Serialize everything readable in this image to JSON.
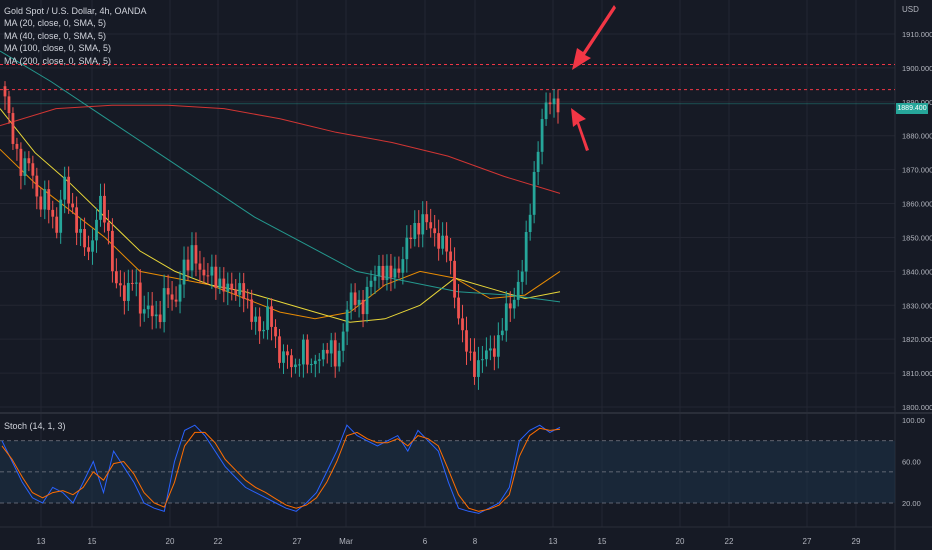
{
  "chart_data": [
    {
      "type": "candlestick",
      "title": "Gold Spot / U.S. Dollar, 4h, OANDA",
      "currency": "USD",
      "indicators": [
        "MA (20, close, 0, SMA, 5)",
        "MA (40, close, 0, SMA, 5)",
        "MA (100, close, 0, SMA, 5)",
        "MA (200, close, 0, SMA, 5)"
      ],
      "y_ticks": [
        "1910.000",
        "1900.000",
        "1890.000",
        "1880.000",
        "1870.000",
        "1860.000",
        "1850.000",
        "1840.000",
        "1830.000",
        "1820.000",
        "1810.000",
        "1800.000"
      ],
      "ylim": [
        1797,
        1916
      ],
      "x_ticks": [
        "13",
        "15",
        "20",
        "22",
        "27",
        "Mar",
        "6",
        "8",
        "13",
        "15",
        "20",
        "22",
        "27",
        "29"
      ],
      "last_price": "1889.400",
      "horizontal_levels": [
        1901.0,
        1893.6
      ],
      "close_path": [
        1890,
        1880,
        1868,
        1874,
        1858,
        1862,
        1852,
        1866,
        1858,
        1848,
        1846,
        1860,
        1854,
        1836,
        1832,
        1840,
        1826,
        1832,
        1822,
        1838,
        1828,
        1842,
        1846,
        1838,
        1842,
        1834,
        1838,
        1832,
        1836,
        1826,
        1822,
        1830,
        1814,
        1818,
        1808,
        1820,
        1810,
        1816,
        1818,
        1812,
        1828,
        1832,
        1830,
        1836,
        1842,
        1838,
        1840,
        1846,
        1852,
        1856,
        1852,
        1850,
        1846,
        1832,
        1818,
        1812,
        1814,
        1816,
        1820,
        1828,
        1834,
        1842,
        1866,
        1882,
        1892,
        1889
      ],
      "ma_series": [
        {
          "name": "MA (20, close, 0, SMA, 5)",
          "color": "#ff9800",
          "values": [
            1876,
            1866,
            1858,
            1850,
            1840,
            1838,
            1836,
            1832,
            1828,
            1826,
            1828,
            1836,
            1840,
            1838,
            1832,
            1833,
            1840
          ]
        },
        {
          "name": "MA (40, close, 0, SMA, 5)",
          "color": "#ffeb3b",
          "values": [
            1888,
            1875,
            1866,
            1856,
            1846,
            1840,
            1836,
            1834,
            1831,
            1828,
            1825,
            1826,
            1830,
            1838,
            1835,
            1832,
            1834
          ]
        },
        {
          "name": "MA (100, close, 0, SMA, 5)",
          "color": "#26a69a",
          "values": [
            1905,
            1896,
            1886,
            1876,
            1866,
            1856,
            1848,
            1840,
            1837,
            1834,
            1833,
            1831
          ]
        },
        {
          "name": "MA (200, close, 0, SMA, 5)",
          "color": "#e53935",
          "values": [
            1883,
            1888,
            1889,
            1889,
            1888,
            1885,
            1881,
            1878,
            1874,
            1868,
            1863
          ]
        }
      ]
    },
    {
      "type": "line",
      "title": "Stoch (14, 1, 3)",
      "ylim": [
        0,
        100
      ],
      "y_ticks": [
        "100.00",
        "60.00",
        "20.00"
      ],
      "bands": [
        80,
        50,
        20
      ],
      "k_values": [
        80,
        60,
        40,
        25,
        20,
        35,
        30,
        20,
        40,
        60,
        30,
        70,
        55,
        40,
        20,
        15,
        12,
        60,
        90,
        95,
        85,
        70,
        55,
        45,
        35,
        30,
        25,
        20,
        15,
        12,
        20,
        30,
        50,
        70,
        95,
        85,
        80,
        75,
        80,
        85,
        70,
        90,
        80,
        70,
        40,
        15,
        12,
        10,
        15,
        20,
        35,
        80,
        90,
        95,
        88,
        93
      ],
      "d_values": [
        75,
        62,
        45,
        30,
        25,
        30,
        32,
        28,
        35,
        50,
        42,
        58,
        60,
        48,
        30,
        20,
        16,
        40,
        75,
        88,
        88,
        78,
        62,
        52,
        42,
        35,
        30,
        24,
        18,
        15,
        18,
        25,
        40,
        60,
        85,
        88,
        82,
        78,
        78,
        82,
        75,
        85,
        82,
        75,
        52,
        28,
        15,
        12,
        14,
        18,
        28,
        65,
        85,
        92,
        90,
        91
      ],
      "k_color": "#2962ff",
      "d_color": "#ff6d00"
    }
  ],
  "colors": {
    "up": "#26a69a",
    "down": "#ef5350",
    "arrow": "#f23645",
    "band_fill": "#1e3349"
  }
}
